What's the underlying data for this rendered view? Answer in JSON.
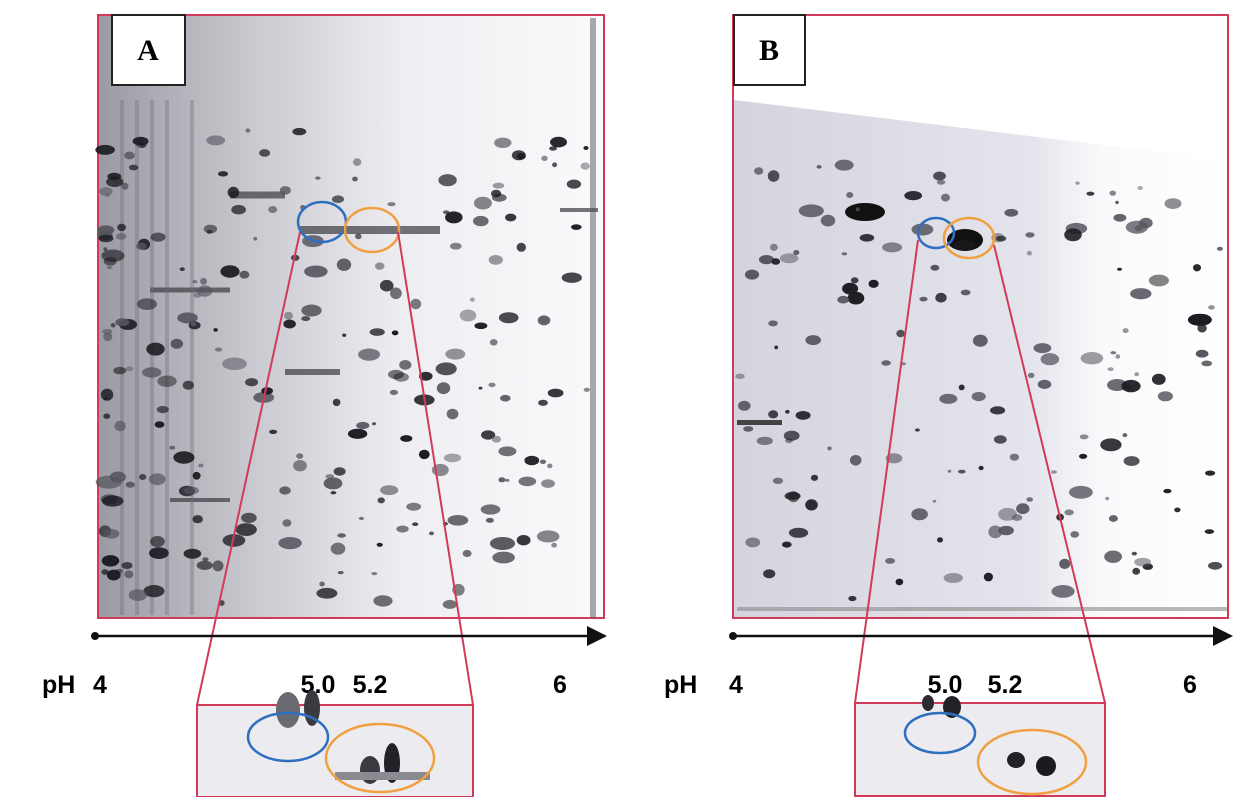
{
  "panels": [
    {
      "label": "A",
      "axis_label": "pH",
      "ticks": [
        "4",
        "5.0",
        "5.2",
        "6"
      ]
    },
    {
      "label": "B",
      "axis_label": "pH",
      "ticks": [
        "4",
        "5.0",
        "5.2",
        "6"
      ]
    }
  ]
}
